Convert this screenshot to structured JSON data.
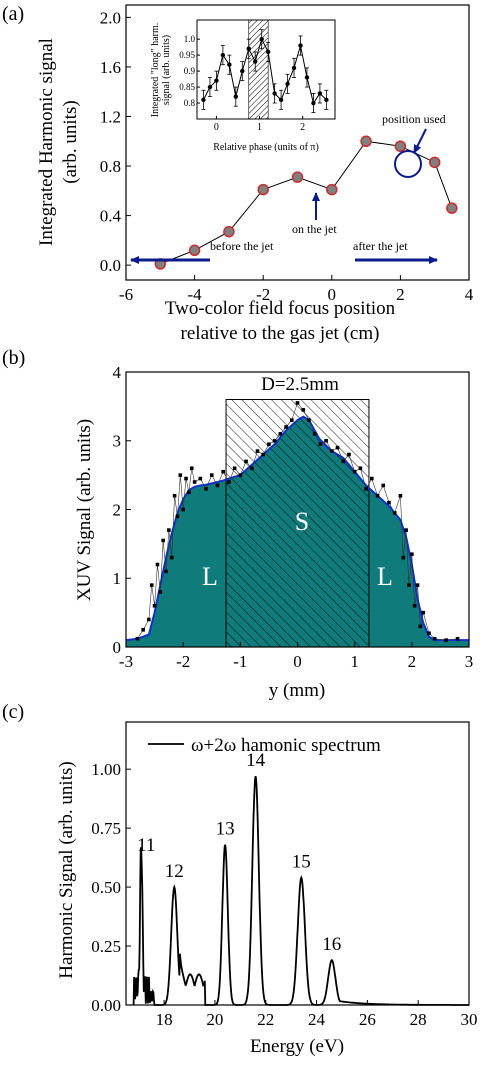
{
  "colors": {
    "teal": "#0f7b7b",
    "blue_curve": "#1030d0",
    "arrow_blue": "#0b1a8c",
    "marker_fill": "#808080",
    "marker_edge": "#cc2b2b",
    "black": "#000000"
  },
  "chart_data": [
    {
      "id": "a",
      "panel_label": "(a)",
      "type": "line",
      "xlabel_lines": [
        "Two-color field focus position",
        "relative to the gas jet (cm)"
      ],
      "ylabel_lines": [
        "Integrated Harmonic signal",
        "(arb. units)"
      ],
      "xlim": [
        -6,
        4
      ],
      "ylim": [
        -0.12,
        2.1
      ],
      "xticks": [
        -6,
        -4,
        -2,
        0,
        2,
        4
      ],
      "yticks": [
        0.0,
        0.4,
        0.8,
        1.2,
        1.6,
        2.0
      ],
      "xtick_labels": [
        "-6",
        "-4",
        "-2",
        "0",
        "2",
        "4"
      ],
      "ytick_labels": [
        "0.0",
        "0.4",
        "0.8",
        "1.2",
        "1.6",
        "2.0"
      ],
      "x": [
        -5,
        -4,
        -3,
        -2,
        -1,
        0,
        1,
        2,
        3,
        3.5
      ],
      "y": [
        0.01,
        0.12,
        0.27,
        0.61,
        0.71,
        0.61,
        1.0,
        0.96,
        0.83,
        0.46
      ],
      "annotations": {
        "before": "before the jet",
        "after": "after the jet",
        "on_jet": "on the jet",
        "position_used": "position used"
      },
      "inset": {
        "type": "line",
        "xlabel": "Relative phase (units of π)",
        "ylabel_lines": [
          "Integrated \"long\" harm.",
          "signal (arb. units)"
        ],
        "xlim": [
          -0.45,
          2.75
        ],
        "ylim": [
          0.75,
          1.06
        ],
        "xticks": [
          0,
          1,
          2
        ],
        "yticks": [
          0.8,
          0.85,
          0.9,
          0.95,
          1.0
        ],
        "xtick_labels": [
          "0",
          "1",
          "2"
        ],
        "ytick_labels": [
          "0.8",
          "0.85",
          "0.9",
          "0.95",
          "1.0"
        ],
        "shaded_range": [
          0.75,
          1.2
        ],
        "x": [
          -0.3,
          -0.15,
          0,
          0.15,
          0.3,
          0.45,
          0.6,
          0.75,
          0.9,
          1.05,
          1.2,
          1.35,
          1.5,
          1.65,
          1.8,
          1.95,
          2.1,
          2.25,
          2.4,
          2.55
        ],
        "y": [
          0.81,
          0.85,
          0.87,
          0.95,
          0.92,
          0.82,
          0.9,
          0.97,
          0.93,
          1.0,
          0.96,
          0.83,
          0.81,
          0.86,
          0.91,
          0.98,
          0.88,
          0.8,
          0.83,
          0.81
        ],
        "err": 0.03
      }
    },
    {
      "id": "b",
      "panel_label": "(b)",
      "type": "area",
      "xlabel": "y (mm)",
      "ylabel": "XUV Signal (arb. units)",
      "xlim": [
        -3,
        3
      ],
      "ylim": [
        0,
        4
      ],
      "xticks": [
        -3,
        -2,
        -1,
        0,
        1,
        2,
        3
      ],
      "yticks": [
        0,
        1,
        2,
        3,
        4
      ],
      "xtick_labels": [
        "-3",
        "-2",
        "-1",
        "0",
        "1",
        "2",
        "3"
      ],
      "ytick_labels": [
        "0",
        "1",
        "2",
        "3",
        "4"
      ],
      "box_label": "D=2.5mm",
      "box_range": [
        -1.25,
        1.25
      ],
      "box_top": 3.6,
      "region_labels": {
        "left": "L",
        "center": "S",
        "right": "L"
      },
      "x": [
        -3.0,
        -2.8,
        -2.6,
        -2.5,
        -2.4,
        -2.3,
        -2.2,
        -2.1,
        -2.0,
        -1.9,
        -1.8,
        -1.7,
        -1.6,
        -1.5,
        -1.4,
        -1.3,
        -1.2,
        -1.0,
        -0.8,
        -0.6,
        -0.4,
        -0.2,
        0.0,
        0.1,
        0.2,
        0.4,
        0.6,
        0.8,
        1.0,
        1.2,
        1.4,
        1.6,
        1.8,
        1.9,
        2.0,
        2.1,
        2.2,
        2.3,
        2.4,
        2.6,
        2.8,
        3.0
      ],
      "y": [
        0.1,
        0.12,
        0.18,
        0.5,
        0.9,
        1.3,
        1.65,
        1.95,
        2.15,
        2.28,
        2.33,
        2.35,
        2.36,
        2.38,
        2.4,
        2.42,
        2.45,
        2.5,
        2.65,
        2.8,
        2.95,
        3.15,
        3.3,
        3.35,
        3.3,
        3.0,
        2.85,
        2.75,
        2.55,
        2.35,
        2.2,
        2.05,
        1.85,
        1.6,
        1.2,
        0.7,
        0.35,
        0.15,
        0.1,
        0.1,
        0.1,
        0.1
      ],
      "scatter_x": [
        -2.8,
        -2.7,
        -2.6,
        -2.55,
        -2.5,
        -2.45,
        -2.4,
        -2.35,
        -2.3,
        -2.25,
        -2.2,
        -2.15,
        -2.1,
        -2.05,
        -2.0,
        -1.95,
        -1.9,
        -1.85,
        -1.8,
        -1.7,
        -1.6,
        -1.5,
        -1.4,
        -1.3,
        -1.2,
        -1.1,
        -1.0,
        -0.9,
        -0.8,
        -0.7,
        -0.6,
        -0.5,
        -0.4,
        -0.3,
        -0.2,
        -0.1,
        0.0,
        0.1,
        0.2,
        0.3,
        0.4,
        0.5,
        0.6,
        0.7,
        0.8,
        0.9,
        1.0,
        1.1,
        1.2,
        1.3,
        1.4,
        1.5,
        1.6,
        1.7,
        1.8,
        1.85,
        1.9,
        1.95,
        2.0,
        2.05,
        2.1,
        2.15,
        2.2,
        2.3,
        2.4,
        2.6,
        2.8
      ],
      "scatter_y": [
        0.12,
        0.25,
        0.4,
        0.9,
        0.6,
        1.2,
        0.8,
        1.55,
        1.1,
        1.7,
        1.3,
        2.2,
        1.9,
        2.5,
        2.0,
        2.45,
        2.25,
        2.6,
        2.4,
        2.45,
        2.3,
        2.5,
        2.35,
        2.55,
        2.4,
        2.6,
        2.5,
        2.7,
        2.6,
        2.85,
        2.8,
        2.95,
        3.0,
        3.1,
        3.2,
        3.3,
        3.55,
        3.45,
        3.3,
        3.1,
        2.95,
        3.0,
        2.85,
        2.9,
        2.7,
        2.8,
        2.55,
        2.6,
        2.3,
        2.45,
        2.2,
        2.35,
        2.1,
        1.95,
        2.2,
        1.3,
        1.7,
        0.9,
        1.35,
        0.6,
        0.9,
        0.3,
        0.5,
        0.2,
        0.12,
        0.1,
        0.12
      ]
    },
    {
      "id": "c",
      "panel_label": "(c)",
      "type": "line",
      "xlabel": "Energy (eV)",
      "ylabel": "Harmonic Signal (arb. units)",
      "legend": "ω+2ω hamonic spectrum",
      "legend_position": "top",
      "xlim": [
        16.5,
        30
      ],
      "ylim": [
        0,
        1.2
      ],
      "xticks": [
        18,
        20,
        22,
        24,
        26,
        28,
        30
      ],
      "yticks": [
        0.0,
        0.25,
        0.5,
        0.75,
        1.0
      ],
      "xtick_labels": [
        "18",
        "20",
        "22",
        "24",
        "26",
        "28",
        "30"
      ],
      "ytick_labels": [
        "0.00",
        "0.25",
        "0.50",
        "0.75",
        "1.00"
      ],
      "peaks": [
        {
          "label": "11",
          "x": 17.1,
          "y": 0.61
        },
        {
          "label": "12",
          "x": 18.4,
          "y": 0.5
        },
        {
          "label": "13",
          "x": 20.4,
          "y": 0.68
        },
        {
          "label": "14",
          "x": 21.6,
          "y": 0.97
        },
        {
          "label": "15",
          "x": 23.4,
          "y": 0.54
        },
        {
          "label": "16",
          "x": 24.6,
          "y": 0.19
        }
      ]
    }
  ]
}
